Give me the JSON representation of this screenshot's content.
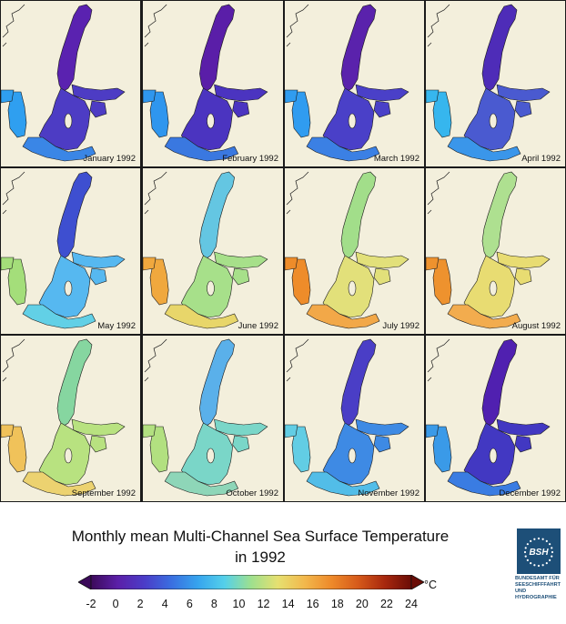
{
  "panels": [
    {
      "label": "January 1992"
    },
    {
      "label": "February 1992"
    },
    {
      "label": "March 1992"
    },
    {
      "label": "April 1992"
    },
    {
      "label": "May 1992"
    },
    {
      "label": "June 1992"
    },
    {
      "label": "July 1992"
    },
    {
      "label": "August 1992"
    },
    {
      "label": "September 1992"
    },
    {
      "label": "October 1992"
    },
    {
      "label": "November 1992"
    },
    {
      "label": "December 1992"
    }
  ],
  "sea_colors": {
    "January 1992": {
      "north": "#5a22b0",
      "mid": "#4d3cc4",
      "south": "#3a86e6",
      "west": "#2f9ff0"
    },
    "February 1992": {
      "north": "#5a1ea8",
      "mid": "#4b34c0",
      "south": "#3a78e0",
      "west": "#2f96ee"
    },
    "March 1992": {
      "north": "#5a22ac",
      "mid": "#4a40c8",
      "south": "#3b80e4",
      "west": "#309cf0"
    },
    "April 1992": {
      "north": "#4e2cb8",
      "mid": "#4a5ad0",
      "south": "#3a96ea",
      "west": "#36b6ee"
    },
    "May 1992": {
      "north": "#3e4fd0",
      "mid": "#56b8f0",
      "south": "#62d0e6",
      "west": "#a4de7a"
    },
    "June 1992": {
      "north": "#64c6e2",
      "mid": "#a7e08a",
      "south": "#e8d66a",
      "west": "#f0a83e"
    },
    "July 1992": {
      "north": "#a2de8a",
      "mid": "#e2e07a",
      "south": "#f2a848",
      "west": "#ee8c2a"
    },
    "August 1992": {
      "north": "#aee090",
      "mid": "#e8dc72",
      "south": "#f2ac4e",
      "west": "#ee922e"
    },
    "September 1992": {
      "north": "#86d6a0",
      "mid": "#b8e280",
      "south": "#ecd270",
      "west": "#f0c25a"
    },
    "October 1992": {
      "north": "#5ab0ea",
      "mid": "#7ad6c8",
      "south": "#8ed6b8",
      "west": "#b2e080"
    },
    "November 1992": {
      "north": "#4a3ec6",
      "mid": "#3e8ae4",
      "south": "#52bde8",
      "west": "#62cde4"
    },
    "December 1992": {
      "north": "#5020b0",
      "mid": "#4238c2",
      "south": "#3a7ce2",
      "west": "#3a9ae8"
    }
  },
  "title_line1": "Monthly mean Multi-Channel Sea Surface Temperature",
  "title_line2": "in 1992",
  "colorbar": {
    "min": -2,
    "max": 24,
    "unit": "°C",
    "ticks": [
      "-2",
      "0",
      "2",
      "4",
      "6",
      "8",
      "10",
      "12",
      "14",
      "16",
      "18",
      "20",
      "22",
      "24"
    ],
    "stops": [
      "#3c0a5a",
      "#5b1fa8",
      "#4b3cc8",
      "#3a6ee0",
      "#36a4ee",
      "#54d0ea",
      "#9ee08e",
      "#e6e070",
      "#f2b84c",
      "#ee8a2a",
      "#d65a1a",
      "#a8280e",
      "#6a0c06"
    ]
  },
  "logo": {
    "mark": "BSH",
    "lines": [
      "BUNDESAMT FÜR",
      "SEESCHIFFFAHRT",
      "UND",
      "HYDROGRAPHIE"
    ]
  },
  "colors": {
    "land": "#f3efdc",
    "coast": "#1a1a1a",
    "panel_border": "#1a1a1a"
  }
}
